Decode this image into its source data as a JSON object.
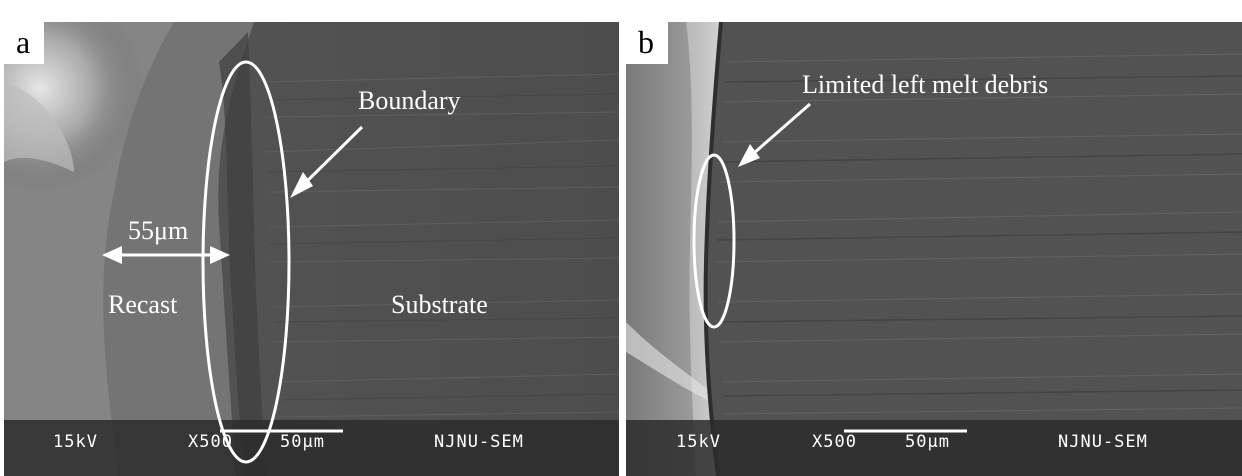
{
  "panel_a": {
    "letter": "a",
    "labels": {
      "boundary": "Boundary",
      "width": "55μm",
      "recast": "Recast",
      "substrate": "Substrate"
    },
    "info": {
      "voltage": "15kV",
      "magnification": "X500",
      "scale": "50μm",
      "lab": "NJNU-SEM"
    }
  },
  "panel_b": {
    "letter": "b",
    "labels": {
      "debris": "Limited left melt debris"
    },
    "info": {
      "voltage": "15kV",
      "magnification": "X500",
      "scale": "50μm",
      "lab": "NJNU-SEM"
    }
  }
}
